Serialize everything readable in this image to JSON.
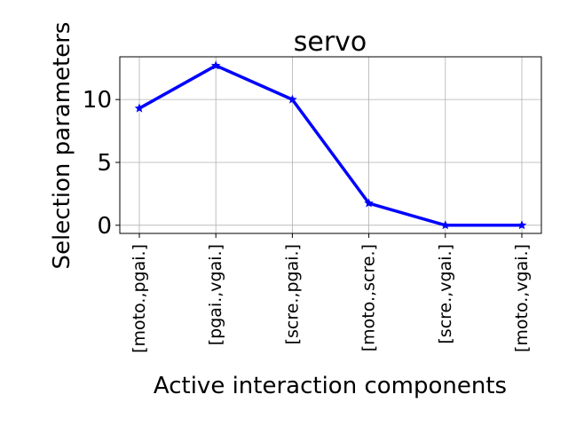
{
  "chart_data": {
    "type": "line",
    "title": "servo",
    "xlabel": "Active interaction components",
    "ylabel": "Selection parameters",
    "categories": [
      "[moto.,pgai.]",
      "[pgai.,vgai.]",
      "[scre.,pgai.]",
      "[moto.,scre.]",
      "[scre.,vgai.]",
      "[moto.,vgai.]"
    ],
    "series": [
      {
        "values": [
          9.3,
          12.7,
          10.0,
          1.75,
          0.0,
          0.0
        ],
        "color": "#0000ff",
        "marker": "star"
      }
    ],
    "ylim": [
      -0.65,
      13.4
    ],
    "yticks": [
      0,
      5,
      10
    ],
    "grid": true
  }
}
